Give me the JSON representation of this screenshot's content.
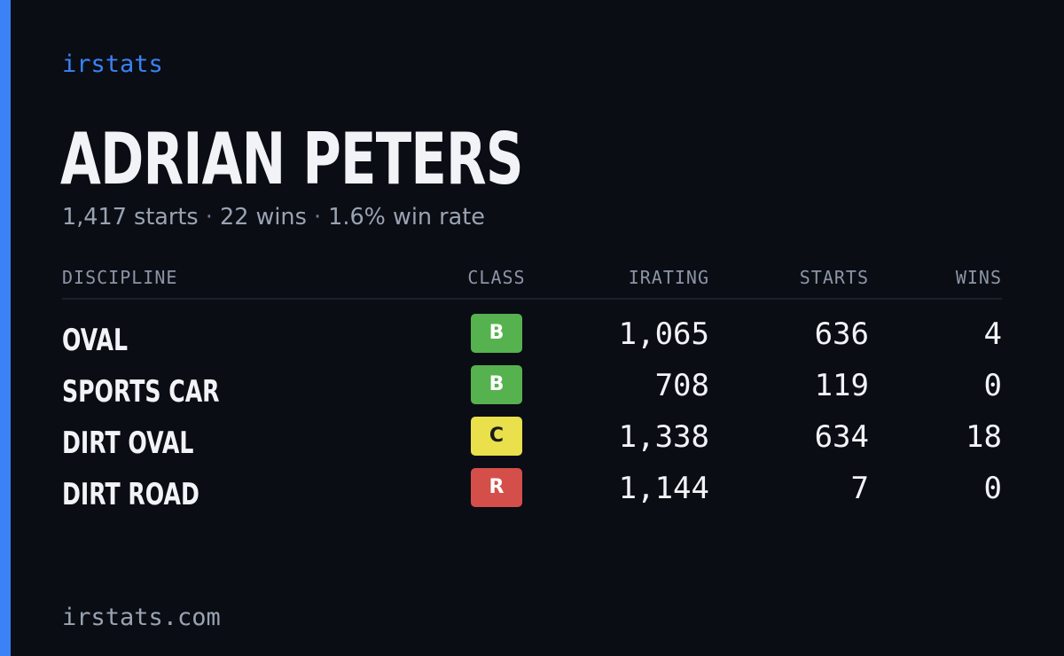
{
  "brand": "irstats",
  "player": {
    "name": "ADRIAN PETERS",
    "summary": {
      "starts": "1,417 starts",
      "wins": "22 wins",
      "win_rate": "1.6% win rate",
      "separator": "·"
    }
  },
  "table": {
    "headers": {
      "discipline": "DISCIPLINE",
      "class": "CLASS",
      "irating": "IRATING",
      "starts": "STARTS",
      "wins": "WINS"
    },
    "rows": [
      {
        "discipline": "OVAL",
        "class": "B",
        "irating": "1,065",
        "starts": "636",
        "wins": "4"
      },
      {
        "discipline": "SPORTS CAR",
        "class": "B",
        "irating": "708",
        "starts": "119",
        "wins": "0"
      },
      {
        "discipline": "DIRT OVAL",
        "class": "C",
        "irating": "1,338",
        "starts": "634",
        "wins": "18"
      },
      {
        "discipline": "DIRT ROAD",
        "class": "R",
        "irating": "1,144",
        "starts": "7",
        "wins": "0"
      }
    ]
  },
  "colors": {
    "background": "#0a0d14",
    "accent": "#3b82f6",
    "class_b": "#56b24e",
    "class_c": "#e9e04c",
    "class_r": "#d44f4a"
  },
  "footer": {
    "url": "irstats.com"
  }
}
